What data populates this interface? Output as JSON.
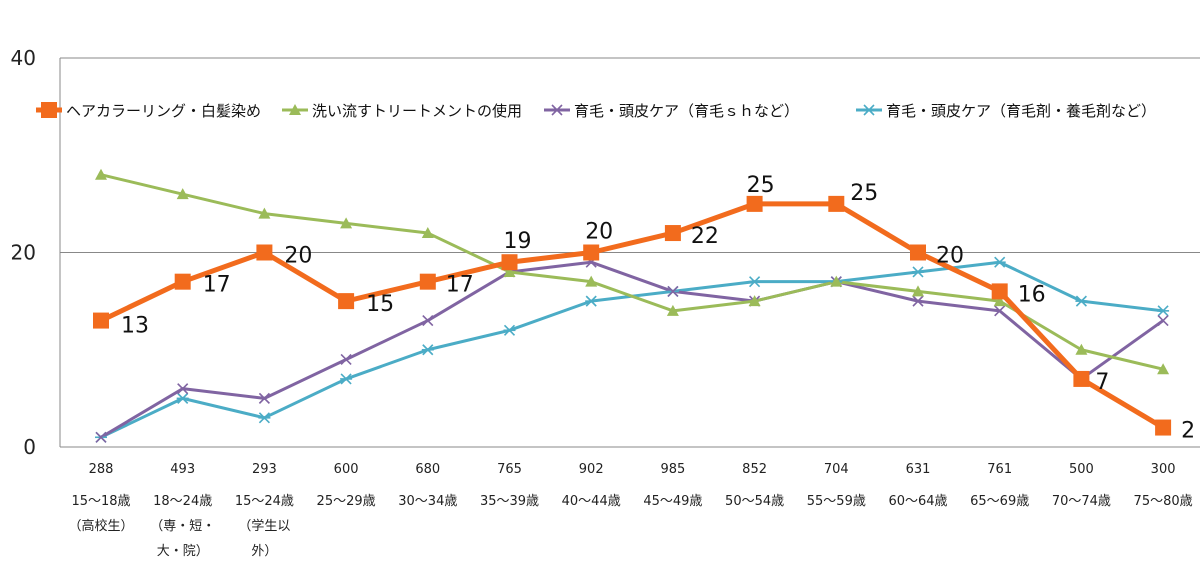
{
  "chart_data": {
    "type": "line",
    "ylim": [
      0,
      40
    ],
    "yticks": [
      0,
      20,
      40
    ],
    "grid": true,
    "legend_position": "top",
    "sample_sizes": [
      "288",
      "493",
      "293",
      "600",
      "680",
      "765",
      "902",
      "985",
      "852",
      "704",
      "631",
      "761",
      "500",
      "300"
    ],
    "categories": [
      [
        "15～18歳",
        "（高校生）"
      ],
      [
        "18～24歳",
        "（専・短・",
        "大・院）"
      ],
      [
        "15～24歳",
        "（学生以",
        "外）"
      ],
      [
        "25～29歳"
      ],
      [
        "30～34歳"
      ],
      [
        "35～39歳"
      ],
      [
        "40～44歳"
      ],
      [
        "45～49歳"
      ],
      [
        "50～54歳"
      ],
      [
        "55～59歳"
      ],
      [
        "60～64歳"
      ],
      [
        "65～69歳"
      ],
      [
        "70～74歳"
      ],
      [
        "75～80歳"
      ]
    ],
    "series": [
      {
        "name": "ヘアカラーリング・白髪染め",
        "color": "#F26B1D",
        "marker": "square",
        "values": [
          13,
          17,
          20,
          15,
          17,
          19,
          20,
          22,
          25,
          25,
          20,
          16,
          7,
          2
        ],
        "labels": [
          "13",
          "17",
          "20",
          "15",
          "17",
          "19",
          "20",
          "22",
          "25",
          "25",
          "20",
          "16",
          "7",
          "2"
        ]
      },
      {
        "name": "洗い流すトリートメントの使用",
        "color": "#9BBB59",
        "marker": "triangle",
        "values": [
          28,
          26,
          24,
          23,
          22,
          18,
          17,
          14,
          15,
          17,
          16,
          15,
          10,
          8
        ]
      },
      {
        "name": "育毛・頭皮ケア（育毛ｓｈなど）",
        "color": "#8064A2",
        "marker": "x",
        "values": [
          1,
          6,
          5,
          9,
          13,
          18,
          19,
          16,
          15,
          17,
          15,
          14,
          7,
          13
        ]
      },
      {
        "name": "育毛・頭皮ケア（育毛剤・養毛剤など）",
        "color": "#4BACC6",
        "marker": "star",
        "values": [
          1,
          5,
          3,
          7,
          10,
          12,
          15,
          16,
          17,
          17,
          18,
          19,
          15,
          14
        ]
      }
    ]
  }
}
